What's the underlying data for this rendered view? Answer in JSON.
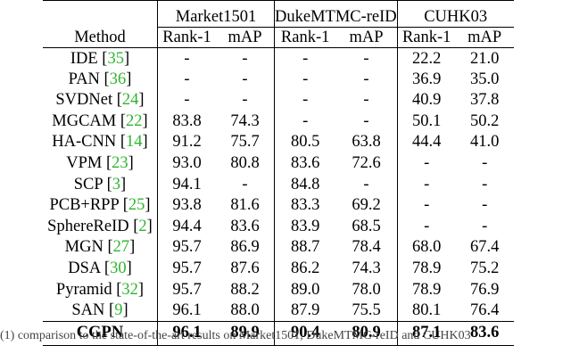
{
  "table": {
    "method_header": "Method",
    "datasets": [
      "Market1501",
      "DukeMTMC-reID",
      "CUHK03"
    ],
    "metrics": [
      "Rank-1",
      "mAP"
    ],
    "rows": [
      {
        "name": "IDE",
        "cite": "35",
        "values": [
          "-",
          "-",
          "-",
          "-",
          "22.2",
          "21.0"
        ]
      },
      {
        "name": "PAN",
        "cite": "36",
        "values": [
          "-",
          "-",
          "-",
          "-",
          "36.9",
          "35.0"
        ]
      },
      {
        "name": "SVDNet",
        "cite": "24",
        "values": [
          "-",
          "-",
          "-",
          "-",
          "40.9",
          "37.8"
        ]
      },
      {
        "name": "MGCAM",
        "cite": "22",
        "values": [
          "83.8",
          "74.3",
          "-",
          "-",
          "50.1",
          "50.2"
        ]
      },
      {
        "name": "HA-CNN",
        "cite": "14",
        "values": [
          "91.2",
          "75.7",
          "80.5",
          "63.8",
          "44.4",
          "41.0"
        ]
      },
      {
        "name": "VPM",
        "cite": "23",
        "values": [
          "93.0",
          "80.8",
          "83.6",
          "72.6",
          "-",
          "-"
        ]
      },
      {
        "name": "SCP",
        "cite": "3",
        "values": [
          "94.1",
          "-",
          "84.8",
          "-",
          "-",
          "-"
        ]
      },
      {
        "name": "PCB+RPP",
        "cite": "25",
        "values": [
          "93.8",
          "81.6",
          "83.3",
          "69.2",
          "-",
          "-"
        ]
      },
      {
        "name": "SphereReID",
        "cite": "2",
        "values": [
          "94.4",
          "83.6",
          "83.9",
          "68.5",
          "-",
          "-"
        ]
      },
      {
        "name": "MGN",
        "cite": "27",
        "values": [
          "95.7",
          "86.9",
          "88.7",
          "78.4",
          "68.0",
          "67.4"
        ]
      },
      {
        "name": "DSA",
        "cite": "30",
        "values": [
          "95.7",
          "87.6",
          "86.2",
          "74.3",
          "78.9",
          "75.2"
        ]
      },
      {
        "name": "Pyramid",
        "cite": "32",
        "values": [
          "95.7",
          "88.2",
          "89.0",
          "78.0",
          "78.9",
          "76.9"
        ]
      },
      {
        "name": "SAN",
        "cite": "9",
        "values": [
          "96.1",
          "88.0",
          "87.9",
          "75.5",
          "80.1",
          "76.4"
        ]
      }
    ],
    "final_row": {
      "name": "CGPN",
      "values": [
        "96.1",
        "89.9",
        "90.4",
        "80.9",
        "87.1",
        "83.6"
      ]
    }
  },
  "caption": "(1) comparison to the state-of-the-art results on Market1501, DukeMTMC-reID and CUHK03"
}
